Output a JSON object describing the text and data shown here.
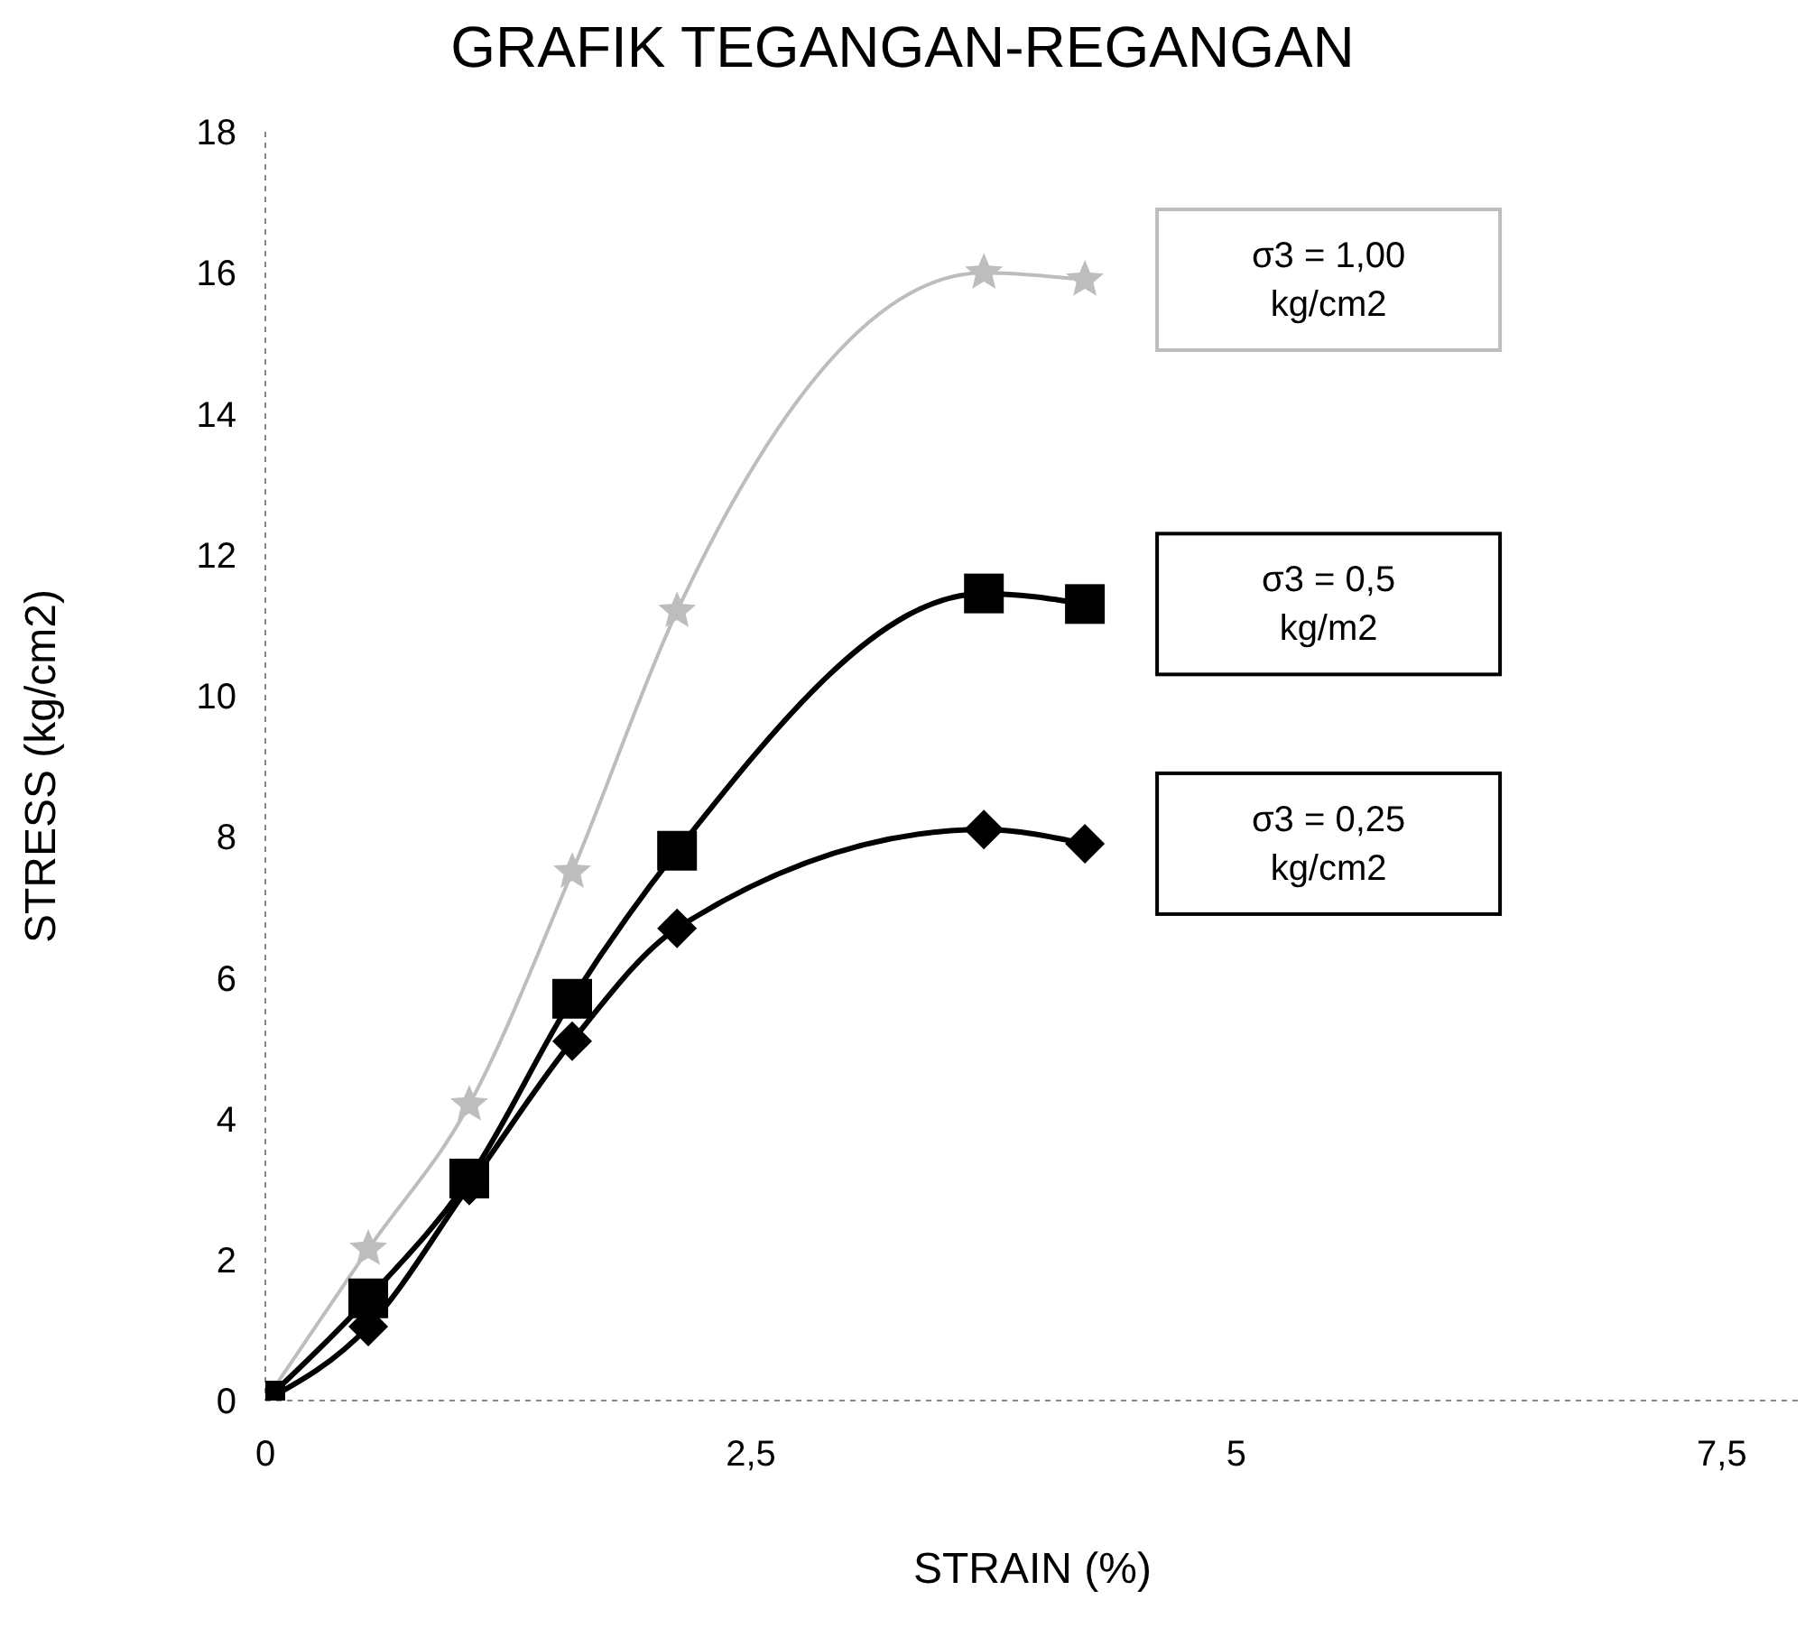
{
  "chart_data": {
    "type": "line",
    "title": "GRAFIK TEGANGAN-REGANGAN",
    "xlabel": "STRAIN (%)",
    "ylabel": "STRESS (kg/cm2)",
    "x": [
      0,
      0.53,
      1.05,
      1.58,
      2.12,
      3.7,
      4.22
    ],
    "series": [
      {
        "name": "σ3 = 1,00 kg/cm2",
        "color": "#bdbdbd",
        "marker": "star",
        "values": [
          0,
          2.15,
          4.2,
          7.5,
          11.2,
          16.0,
          15.9
        ]
      },
      {
        "name": "σ3 = 0,5 kg/m2",
        "color": "#000000",
        "marker": "square",
        "values": [
          0,
          1.45,
          3.15,
          5.7,
          7.8,
          11.45,
          11.3
        ]
      },
      {
        "name": "σ3 = 0,25 kg/cm2",
        "color": "#000000",
        "marker": "diamond",
        "values": [
          0,
          1.05,
          3.05,
          5.1,
          6.7,
          8.1,
          7.9
        ]
      }
    ],
    "xlim": [
      0,
      7.9
    ],
    "xticks": [
      0,
      {
        "value": 2.5,
        "label": "2,5"
      },
      5,
      {
        "value": 7.5,
        "label": "7,5"
      }
    ],
    "ylim": [
      0,
      18
    ],
    "yticks": [
      0,
      2,
      4,
      6,
      8,
      10,
      12,
      14,
      16,
      18
    ],
    "grid": false,
    "legend": false,
    "line_style": "solid"
  }
}
